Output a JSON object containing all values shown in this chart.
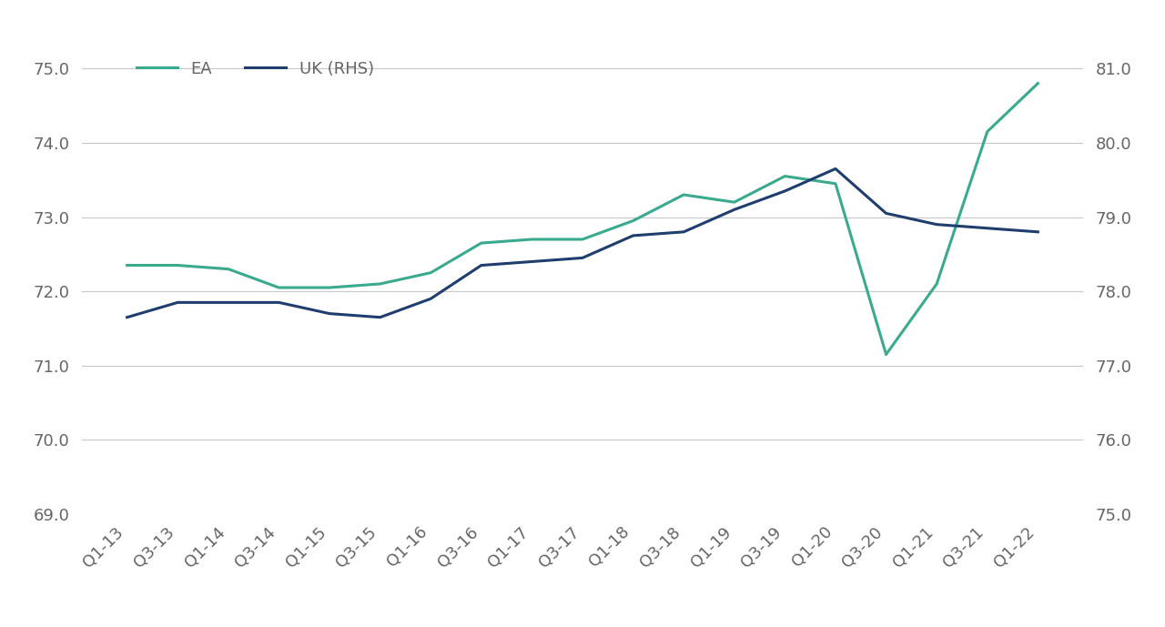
{
  "x_labels": [
    "Q1-13",
    "Q3-13",
    "Q1-14",
    "Q3-14",
    "Q1-15",
    "Q3-15",
    "Q1-16",
    "Q3-16",
    "Q1-17",
    "Q3-17",
    "Q1-18",
    "Q3-18",
    "Q1-19",
    "Q3-19",
    "Q1-20",
    "Q3-20",
    "Q1-21",
    "Q3-21",
    "Q1-22"
  ],
  "ea_values": [
    72.35,
    72.35,
    72.3,
    72.05,
    72.05,
    72.1,
    72.25,
    72.65,
    72.7,
    72.7,
    72.95,
    73.3,
    73.2,
    73.55,
    73.45,
    71.15,
    72.1,
    74.15,
    74.8
  ],
  "uk_values": [
    77.65,
    77.85,
    77.85,
    77.85,
    77.7,
    77.65,
    77.9,
    78.35,
    78.4,
    78.45,
    78.75,
    78.8,
    79.1,
    79.35,
    79.65,
    79.05,
    78.9,
    78.85,
    78.8
  ],
  "ea_color": "#3aaa8e",
  "uk_color": "#1f3d6e",
  "line_width": 2.2,
  "ylim_left": [
    69.0,
    75.5
  ],
  "ylim_right": [
    75.0,
    81.5
  ],
  "yticks_left": [
    69.0,
    70.0,
    71.0,
    72.0,
    73.0,
    74.0,
    75.0
  ],
  "yticks_right": [
    75.0,
    76.0,
    77.0,
    78.0,
    79.0,
    80.0,
    81.0
  ],
  "background_color": "#ffffff",
  "grid_color": "#c8c8c8",
  "legend_ea": "EA",
  "legend_uk": "UK (RHS)",
  "tick_fontsize": 13,
  "legend_fontsize": 13,
  "tick_color": "#666666"
}
